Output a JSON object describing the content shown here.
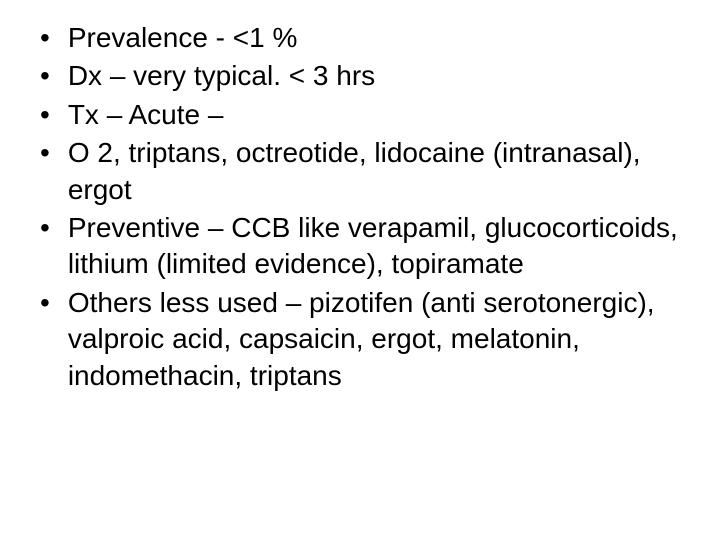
{
  "slide": {
    "bullets": [
      {
        "text": "Prevalence - <1 %"
      },
      {
        "text": "Dx – very typical.  < 3 hrs"
      },
      {
        "text": "Tx – Acute –"
      },
      {
        "text": "O 2, triptans, octreotide, lidocaine (intranasal), ergot"
      },
      {
        "text": "Preventive – CCB like verapamil, glucocorticoids, lithium (limited evidence), topiramate"
      },
      {
        "text": " Others less used – pizotifen (anti serotonergic), valproic acid, capsaicin, ergot, melatonin, indomethacin, triptans"
      }
    ],
    "styling": {
      "background_color": "#ffffff",
      "text_color": "#000000",
      "font_size": 28,
      "font_family": "Arial, Helvetica, sans-serif",
      "bullet_char": "•",
      "line_height": 1.3
    }
  }
}
